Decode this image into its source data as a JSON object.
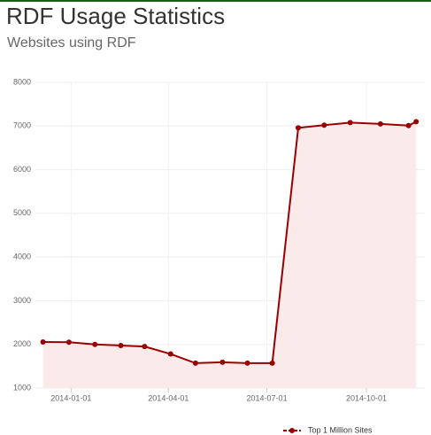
{
  "chart_data": {
    "type": "line",
    "title": "RDF Usage Statistics",
    "subtitle": "Websites using RDF",
    "x": [
      "2013-12-06",
      "2013-12-30",
      "2014-01-23",
      "2014-02-16",
      "2014-03-10",
      "2014-04-03",
      "2014-04-26",
      "2014-05-21",
      "2014-06-13",
      "2014-07-06",
      "2014-07-30",
      "2014-08-23",
      "2014-09-16",
      "2014-10-14",
      "2014-11-09",
      "2014-11-16"
    ],
    "series": [
      {
        "name": "Top 1 Million Sites",
        "color": "#990000",
        "fill": "#fbeaea",
        "values": [
          2055,
          2050,
          2000,
          1975,
          1950,
          1780,
          1570,
          1590,
          1570,
          1570,
          6960,
          7020,
          7080,
          7050,
          7010,
          7100
        ]
      }
    ],
    "xlim": [
      "2013-11-29",
      "2014-11-24"
    ],
    "xticks": [
      "2014-01-01",
      "2014-04-01",
      "2014-07-01",
      "2014-10-01"
    ],
    "ylim": [
      1000,
      8000
    ],
    "yticks": [
      1000,
      2000,
      3000,
      4000,
      5000,
      6000,
      7000,
      8000
    ],
    "grid": true,
    "legend": "bottom-right"
  }
}
